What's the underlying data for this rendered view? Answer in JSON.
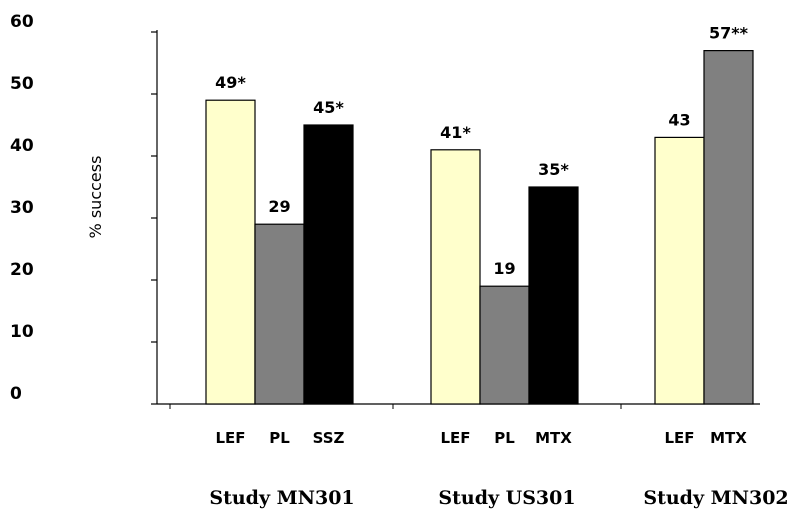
{
  "chart_data": {
    "type": "bar",
    "ylabel": "% success",
    "ylim": [
      0,
      60
    ],
    "yticks": [
      "0",
      "10",
      "20",
      "30",
      "40",
      "50",
      "60"
    ],
    "groups": [
      {
        "name": "Study MN301",
        "bars": [
          {
            "category": "LEF",
            "value": 49,
            "label": "49*",
            "color": "#ffffcc"
          },
          {
            "category": "PL",
            "value": 29,
            "label": "29",
            "color": "#808080"
          },
          {
            "category": "SSZ",
            "value": 45,
            "label": "45*",
            "color": "#000000"
          }
        ]
      },
      {
        "name": "Study US301",
        "bars": [
          {
            "category": "LEF",
            "value": 41,
            "label": "41*",
            "color": "#ffffcc"
          },
          {
            "category": "PL",
            "value": 19,
            "label": "19",
            "color": "#808080"
          },
          {
            "category": "MTX",
            "value": 35,
            "label": "35*",
            "color": "#000000"
          }
        ]
      },
      {
        "name": "Study MN302",
        "bars": [
          {
            "category": "LEF",
            "value": 43,
            "label": "43",
            "color": "#ffffcc"
          },
          {
            "category": "MTX",
            "value": 57,
            "label": "57**",
            "color": "#808080"
          }
        ]
      }
    ],
    "legend": "none",
    "grid": false
  }
}
